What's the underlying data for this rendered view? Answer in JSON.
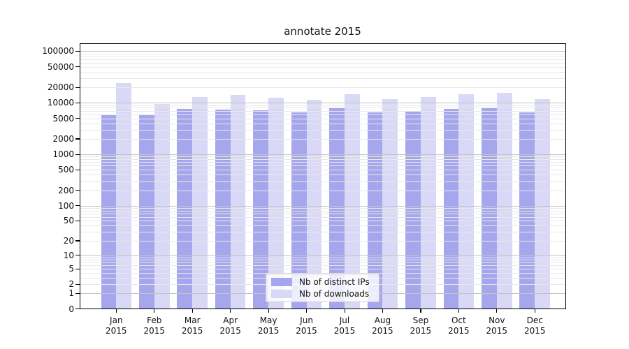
{
  "chart_data": {
    "type": "bar",
    "title": "annotate 2015",
    "categories": [
      "Jan 2015",
      "Feb 2015",
      "Mar 2015",
      "Apr 2015",
      "May 2015",
      "Jun 2015",
      "Jul 2015",
      "Aug 2015",
      "Sep 2015",
      "Oct 2015",
      "Nov 2015",
      "Dec 2015"
    ],
    "series": [
      {
        "name": "Nb of distinct IPs",
        "color": "#a6a6ed",
        "values": [
          5800,
          5900,
          7600,
          7300,
          7100,
          6500,
          8200,
          6600,
          6800,
          7600,
          8200,
          6500
        ]
      },
      {
        "name": "Nb of downloads",
        "color": "#d9d9f7",
        "values": [
          24500,
          9600,
          13000,
          14200,
          12600,
          11500,
          14900,
          11700,
          13000,
          14900,
          15400,
          11700
        ]
      }
    ],
    "yticks": [
      100000,
      50000,
      20000,
      10000,
      5000,
      2000,
      1000,
      500,
      200,
      100,
      50,
      20,
      10,
      5,
      2,
      1,
      0
    ],
    "ylim": [
      0,
      145000
    ],
    "yscale": "log10(1+value)",
    "grid": {
      "major_color": "#c4c4c4",
      "minor_color": "#e8e8e8"
    },
    "legend_position": "lower center inside plot"
  }
}
